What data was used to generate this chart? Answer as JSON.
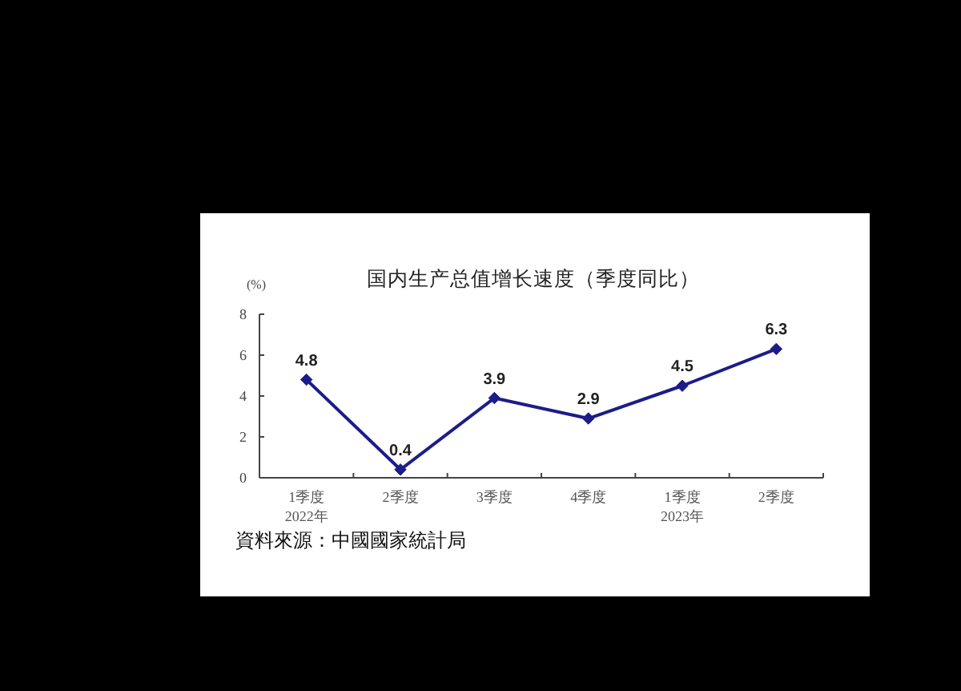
{
  "chart_data": {
    "type": "line",
    "title": "国内生产总值增长速度（季度同比）",
    "ylabel": "(%)",
    "categories": [
      "1季度\n2022年",
      "2季度",
      "3季度",
      "4季度",
      "1季度\n2023年",
      "2季度"
    ],
    "series": [
      {
        "color": "#1c1c8a",
        "values": [
          4.8,
          0.4,
          3.9,
          2.9,
          4.5,
          6.3
        ]
      }
    ],
    "ylim": [
      0,
      8
    ],
    "yticks": [
      0,
      2,
      4,
      6,
      8
    ],
    "grid": false,
    "marker": "diamond",
    "line_style": "solid",
    "data_labels": true,
    "annotations": [
      "資料來源：中國國家統計局"
    ]
  }
}
